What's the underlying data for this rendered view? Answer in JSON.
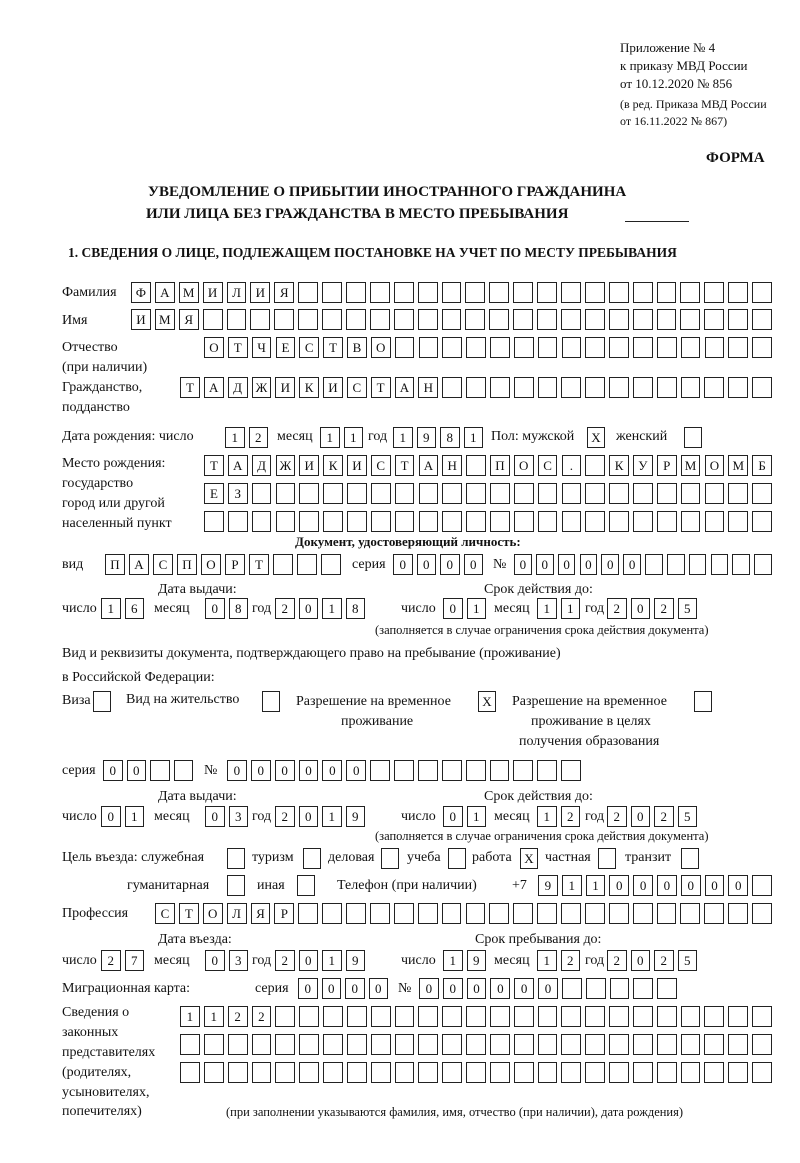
{
  "header": {
    "appendix": "Приложение № 4",
    "order": "к приказу МВД России",
    "order_date": "от 10.12.2020 № 856",
    "edition": "(в ред. Приказа МВД России",
    "edition_date": "от 16.11.2022 № 867)",
    "form_label": "ФОРМА"
  },
  "title": {
    "line1": "УВЕДОМЛЕНИЕ О ПРИБЫТИИ ИНОСТРАННОГО ГРАЖДАНИНА",
    "line2": "ИЛИ ЛИЦА БЕЗ ГРАЖДАНСТВА В МЕСТО ПРЕБЫВАНИЯ"
  },
  "section1": {
    "heading": "1. СВЕДЕНИЯ О ЛИЦЕ, ПОДЛЕЖАЩЕМ ПОСТАНОВКЕ НА УЧЕТ ПО МЕСТУ ПРЕБЫВАНИЯ"
  },
  "labels": {
    "surname": "Фамилия",
    "name": "Имя",
    "patronymic": "Отчество",
    "patronymic_note": "(при наличии)",
    "citizenship": "Гражданство,",
    "citizenship2": "подданство",
    "birth_date": "Дата рождения:  число",
    "month": "месяц",
    "year": "год",
    "day": "число",
    "sex": "Пол: мужской",
    "female": "женский",
    "birth_place": "Место рождения:",
    "birth_place2": "государство",
    "birth_place3": "город или другой",
    "birth_place4": "населенный пункт",
    "id_doc": "Документ, удостоверяющий личность:",
    "kind": "вид",
    "series": "серия",
    "number": "№",
    "issue_date": "Дата выдачи:",
    "valid_until": "Срок действия до:",
    "validity_note": "(заполняется в случае ограничения срока действия документа)",
    "residence_doc": "Вид и реквизиты документа, подтверждающего право на пребывание (проживание)",
    "residence_doc2": "в Российской Федерации:",
    "visa": "Виза",
    "residence_permit": "Вид на жительство",
    "temp_permit": "Разрешение на временное",
    "temp_permit2": "проживание",
    "temp_edu_permit": "Разрешение на временное",
    "temp_edu_permit2": "проживание в целях",
    "temp_edu_permit3": "получения образования",
    "purpose": "Цель въезда: служебная",
    "tourism": "туризм",
    "business": "деловая",
    "study": "учеба",
    "work": "работа",
    "private": "частная",
    "transit": "транзит",
    "humanitarian": "гуманитарная",
    "other": "иная",
    "phone": "Телефон (при наличии)",
    "phone_prefix": "+7",
    "profession": "Профессия",
    "entry_date": "Дата въезда:",
    "stay_until": "Срок пребывания до:",
    "migration_card": "Миграционная карта:",
    "reps1": "Сведения о",
    "reps2": "законных",
    "reps3": "представителях",
    "reps4": "(родителях,",
    "reps5": "усыновителях,",
    "reps6": "попечителях)",
    "reps_note": "(при заполнении указываются фамилия, имя, отчество (при наличии), дата рождения)"
  },
  "values": {
    "surname": "ФАМИЛИЯ",
    "name": "ИМЯ",
    "patronymic": "ОТЧЕСТВО",
    "citizenship": "ТАДЖИКИСТАН",
    "birth_day": "12",
    "birth_month": "11",
    "birth_year": "1981",
    "sex_male": "X",
    "sex_female": "",
    "birth_place_1": "ТАДЖИКИСТАН ПОС. КУРМОМБ",
    "birth_place_2": "ЕЗ",
    "birth_place_3": "",
    "id_kind": "ПАСПОРТ",
    "id_series": "0000",
    "id_number": "000000",
    "id_issue_day": "16",
    "id_issue_month": "08",
    "id_issue_year": "2018",
    "id_valid_day": "01",
    "id_valid_month": "11",
    "id_valid_year": "2025",
    "visa": "",
    "residence_permit": "",
    "temp_permit": "X",
    "temp_edu_permit": "",
    "res_series": "00",
    "res_number": "000000",
    "res_issue_day": "01",
    "res_issue_month": "03",
    "res_issue_year": "2019",
    "res_valid_day": "01",
    "res_valid_month": "12",
    "res_valid_year": "2025",
    "purpose_service": "",
    "purpose_tourism": "",
    "purpose_business": "",
    "purpose_study": "",
    "purpose_work": "X",
    "purpose_private": "",
    "purpose_transit": "",
    "purpose_humanitarian": "",
    "purpose_other": "",
    "phone": "911000000",
    "profession": "СТОЛЯР",
    "entry_day": "27",
    "entry_month": "03",
    "entry_year": "2019",
    "stay_day": "19",
    "stay_month": "12",
    "stay_year": "2025",
    "mc_series": "0000",
    "mc_number": "000000",
    "reps_1": "1122",
    "reps_2": "",
    "reps_3": ""
  }
}
